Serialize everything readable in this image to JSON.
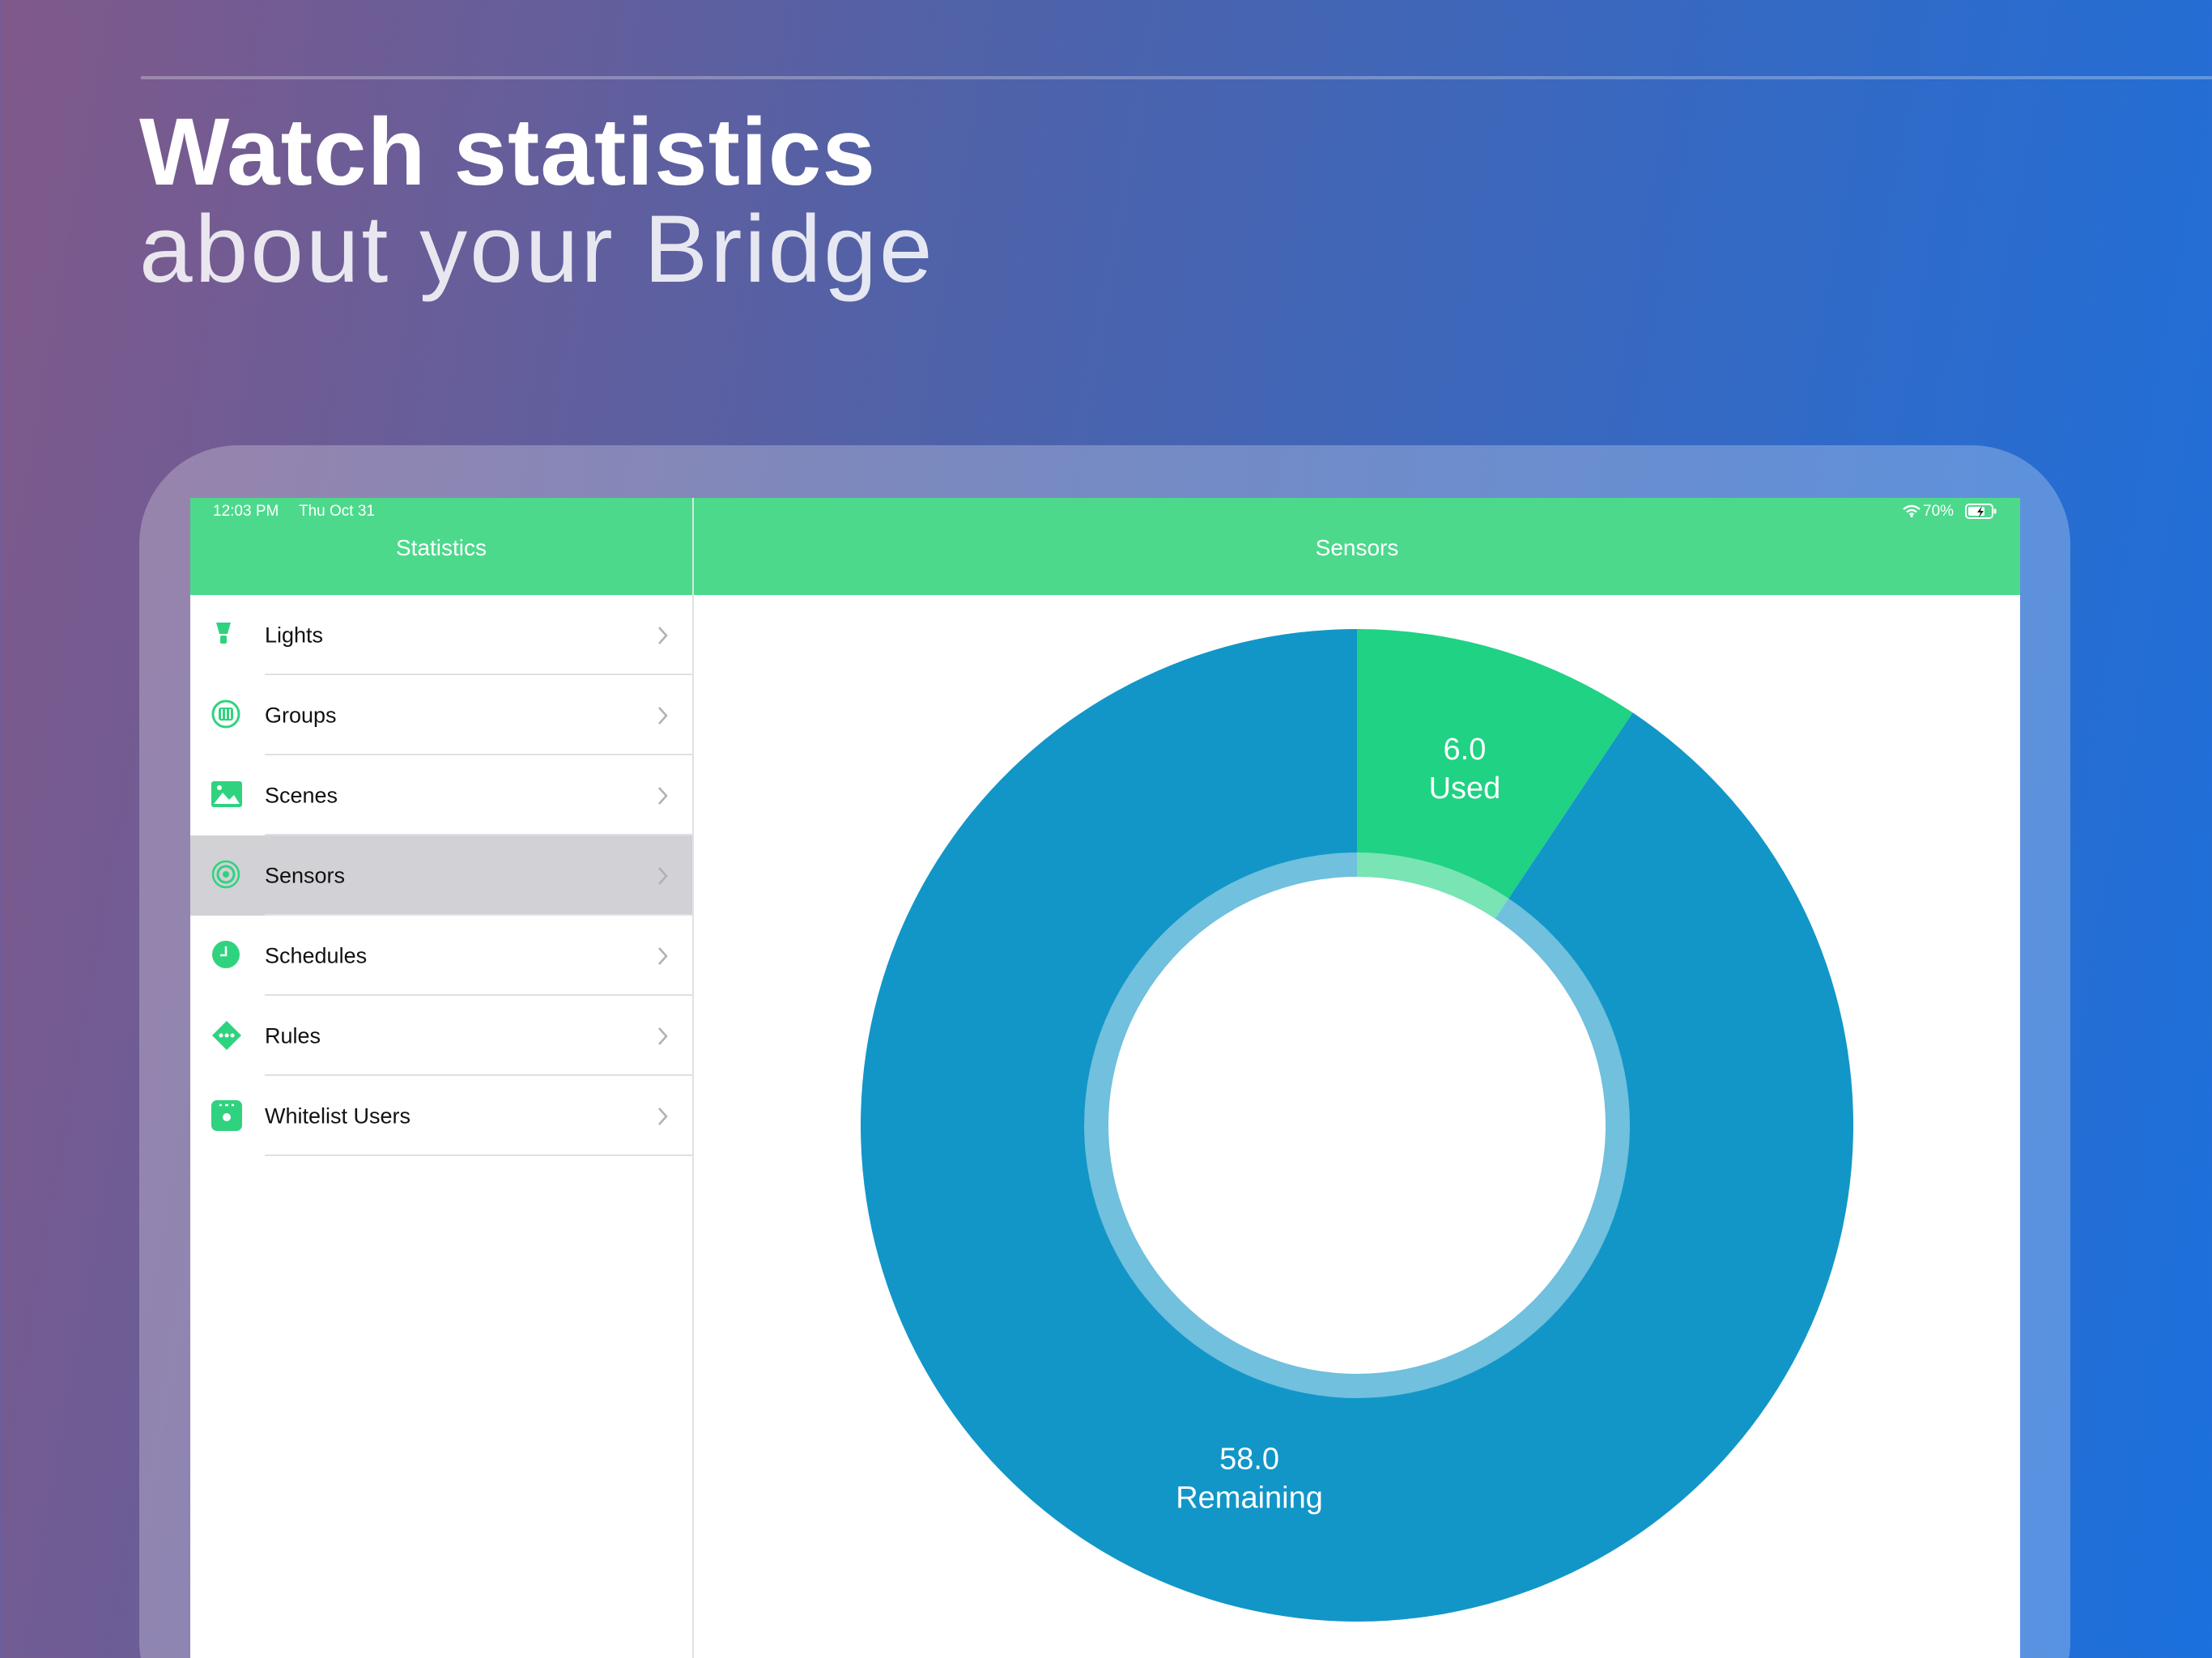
{
  "header": {
    "title": "Watch statistics",
    "subtitle": "about your Bridge"
  },
  "status_bar": {
    "time": "12:03 PM",
    "date": "Thu Oct 31",
    "battery": "70%"
  },
  "sidebar": {
    "title": "Statistics",
    "items": [
      "Lights",
      "Groups",
      "Scenes",
      "Sensors",
      "Schedules",
      "Rules",
      "Whitelist Users"
    ],
    "selected": 3
  },
  "detail": {
    "title": "Sensors"
  },
  "chart_data": {
    "type": "pie",
    "labels": [
      "Used",
      "Remaining"
    ],
    "values": [
      6.0,
      58.0
    ],
    "value_labels": [
      "6.0",
      "58.0"
    ],
    "colors": [
      "#20d283",
      "#1296c8"
    ],
    "donut": true
  }
}
